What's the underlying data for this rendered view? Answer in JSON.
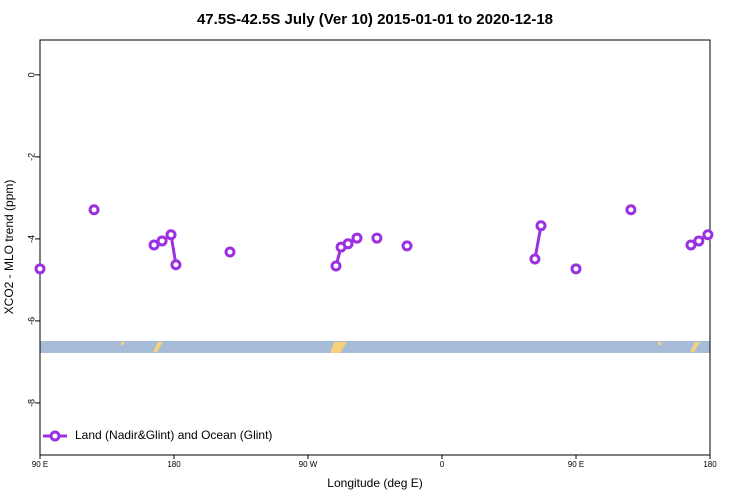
{
  "chart_data": {
    "type": "line",
    "title": "47.5S-42.5S July (Ver 10)   2015-01-01 to 2020-12-18",
    "x_label": "Longitude (deg E)",
    "y_label": "XCO2 - MLO trend (ppm)",
    "x": [
      90,
      null,
      126.3,
      null,
      166.6,
      172,
      178,
      181.3,
      null,
      217.6,
      null,
      288.8,
      292.2,
      296.9,
      302.9,
      null,
      316.3,
      null,
      336.5,
      null,
      422.4,
      426.5,
      null,
      450,
      null,
      486.9,
      null,
      527.2,
      532.5,
      538.6
    ],
    "series": [
      {
        "name": "Land (Nadir&Glint) and Ocean (Glint)",
        "color": "#9b30e0",
        "values": [
          -4.73,
          null,
          -3.29,
          null,
          -4.15,
          -4.05,
          -3.9,
          -4.63,
          null,
          -4.32,
          null,
          -4.66,
          -4.2,
          -4.12,
          -3.98,
          null,
          -3.98,
          null,
          -4.17,
          null,
          -4.49,
          -3.68,
          null,
          -4.73,
          null,
          -3.29,
          null,
          -4.15,
          -4.05,
          -3.9
        ]
      }
    ],
    "xlim": [
      90,
      540
    ],
    "xticks": [
      {
        "value": 90,
        "label": "90 E"
      },
      {
        "value": 180,
        "label": "180"
      },
      {
        "value": 270,
        "label": "90 W"
      },
      {
        "value": 360,
        "label": "0"
      },
      {
        "value": 450,
        "label": "90 E"
      },
      {
        "value": 540,
        "label": "180"
      }
    ],
    "ylim": [
      -9.27,
      0.85
    ],
    "yticks": [
      0,
      -2,
      -4,
      -6,
      -8
    ],
    "legend": "bottom-left"
  }
}
